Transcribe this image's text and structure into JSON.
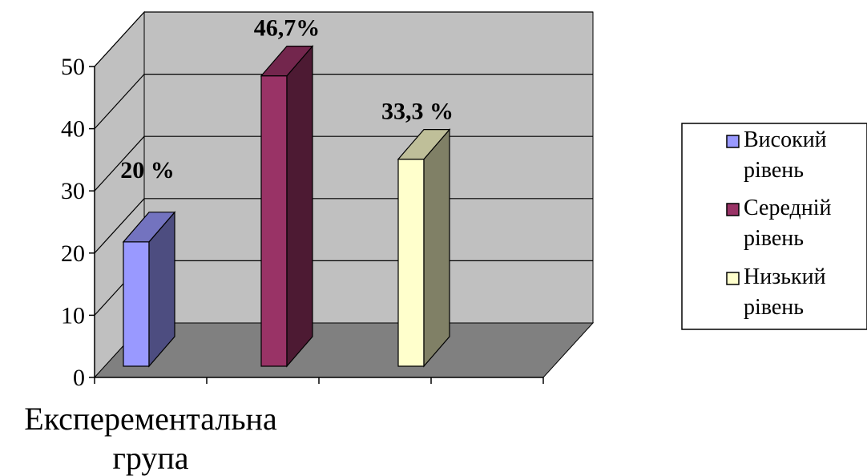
{
  "chart_data": {
    "type": "bar",
    "categories": [
      "Експерементальна група"
    ],
    "category_lines": [
      "Експерементальна",
      "група"
    ],
    "series": [
      {
        "name": "Високий рівень",
        "name_lines": [
          "Високий",
          "рівень"
        ],
        "values": [
          20
        ],
        "label": "20 %",
        "color": "#9999ff"
      },
      {
        "name": "Середній рівень",
        "name_lines": [
          "Середній",
          "рівень"
        ],
        "values": [
          46.7
        ],
        "label": "46,7%",
        "color": "#993366"
      },
      {
        "name": "Низький рівень",
        "name_lines": [
          "Низький",
          "рівень"
        ],
        "values": [
          33.3
        ],
        "label": "33,3 %",
        "color": "#ffffcc"
      }
    ],
    "yticks": [
      "0",
      "10",
      "20",
      "30",
      "40",
      "50"
    ],
    "ylim": [
      0,
      50
    ],
    "grid": true,
    "legend_position": "right",
    "three_d": true,
    "colors": {
      "wall": "#c0c0c0",
      "floor": "#808080"
    }
  }
}
